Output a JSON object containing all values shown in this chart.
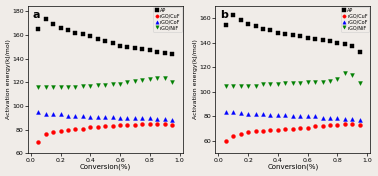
{
  "conversion": [
    0.05,
    0.1,
    0.15,
    0.2,
    0.25,
    0.3,
    0.35,
    0.4,
    0.45,
    0.5,
    0.55,
    0.6,
    0.65,
    0.7,
    0.75,
    0.8,
    0.85,
    0.9,
    0.95
  ],
  "panel_a": {
    "AP": [
      165,
      174,
      169,
      166,
      164,
      162,
      161,
      159,
      157,
      155,
      153,
      151,
      150,
      149,
      148,
      147,
      146,
      145,
      144
    ],
    "rGO_CuF": [
      70,
      76,
      78,
      79,
      80,
      81,
      81,
      82,
      82,
      83,
      83,
      84,
      84,
      84,
      85,
      85,
      85,
      85,
      84
    ],
    "rGO_CoF": [
      95,
      93,
      93,
      93,
      92,
      92,
      92,
      91,
      91,
      91,
      91,
      90,
      90,
      90,
      90,
      90,
      89,
      89,
      88
    ],
    "rGO_NiF": [
      116,
      116,
      116,
      116,
      116,
      116,
      117,
      117,
      118,
      118,
      119,
      119,
      120,
      121,
      122,
      123,
      124,
      124,
      120
    ]
  },
  "panel_b": {
    "AP": [
      154,
      162,
      158,
      155,
      153,
      151,
      150,
      148,
      147,
      146,
      145,
      144,
      143,
      142,
      141,
      140,
      139,
      137,
      132
    ],
    "rGO_CuF": [
      60,
      64,
      66,
      67,
      68,
      68,
      69,
      69,
      70,
      70,
      71,
      71,
      72,
      72,
      73,
      73,
      74,
      74,
      73
    ],
    "rGO_CoF": [
      84,
      84,
      83,
      82,
      82,
      82,
      81,
      81,
      81,
      80,
      80,
      80,
      80,
      79,
      79,
      79,
      78,
      78,
      77
    ],
    "rGO_NiF": [
      105,
      105,
      105,
      105,
      105,
      106,
      106,
      106,
      107,
      107,
      107,
      108,
      108,
      108,
      109,
      110,
      115,
      114,
      107
    ]
  },
  "legend_labels": [
    "AP",
    "rGO/CuF",
    "rGO/CoF",
    "rGO/NiF"
  ],
  "colors": [
    "black",
    "red",
    "blue",
    "green"
  ],
  "markers": [
    "s",
    "o",
    "^",
    "v"
  ],
  "ylabel": "Activation energy(kJ/mol)",
  "xlabel": "Conversion(%)",
  "panel_a_ylim": [
    60,
    185
  ],
  "panel_b_ylim": [
    50,
    170
  ],
  "panel_a_yticks": [
    60,
    80,
    100,
    120,
    140,
    160,
    180
  ],
  "panel_b_yticks": [
    60,
    80,
    100,
    120,
    140,
    160
  ],
  "panel_a_label": "a",
  "panel_b_label": "b",
  "bg_color": "#f0ece8"
}
